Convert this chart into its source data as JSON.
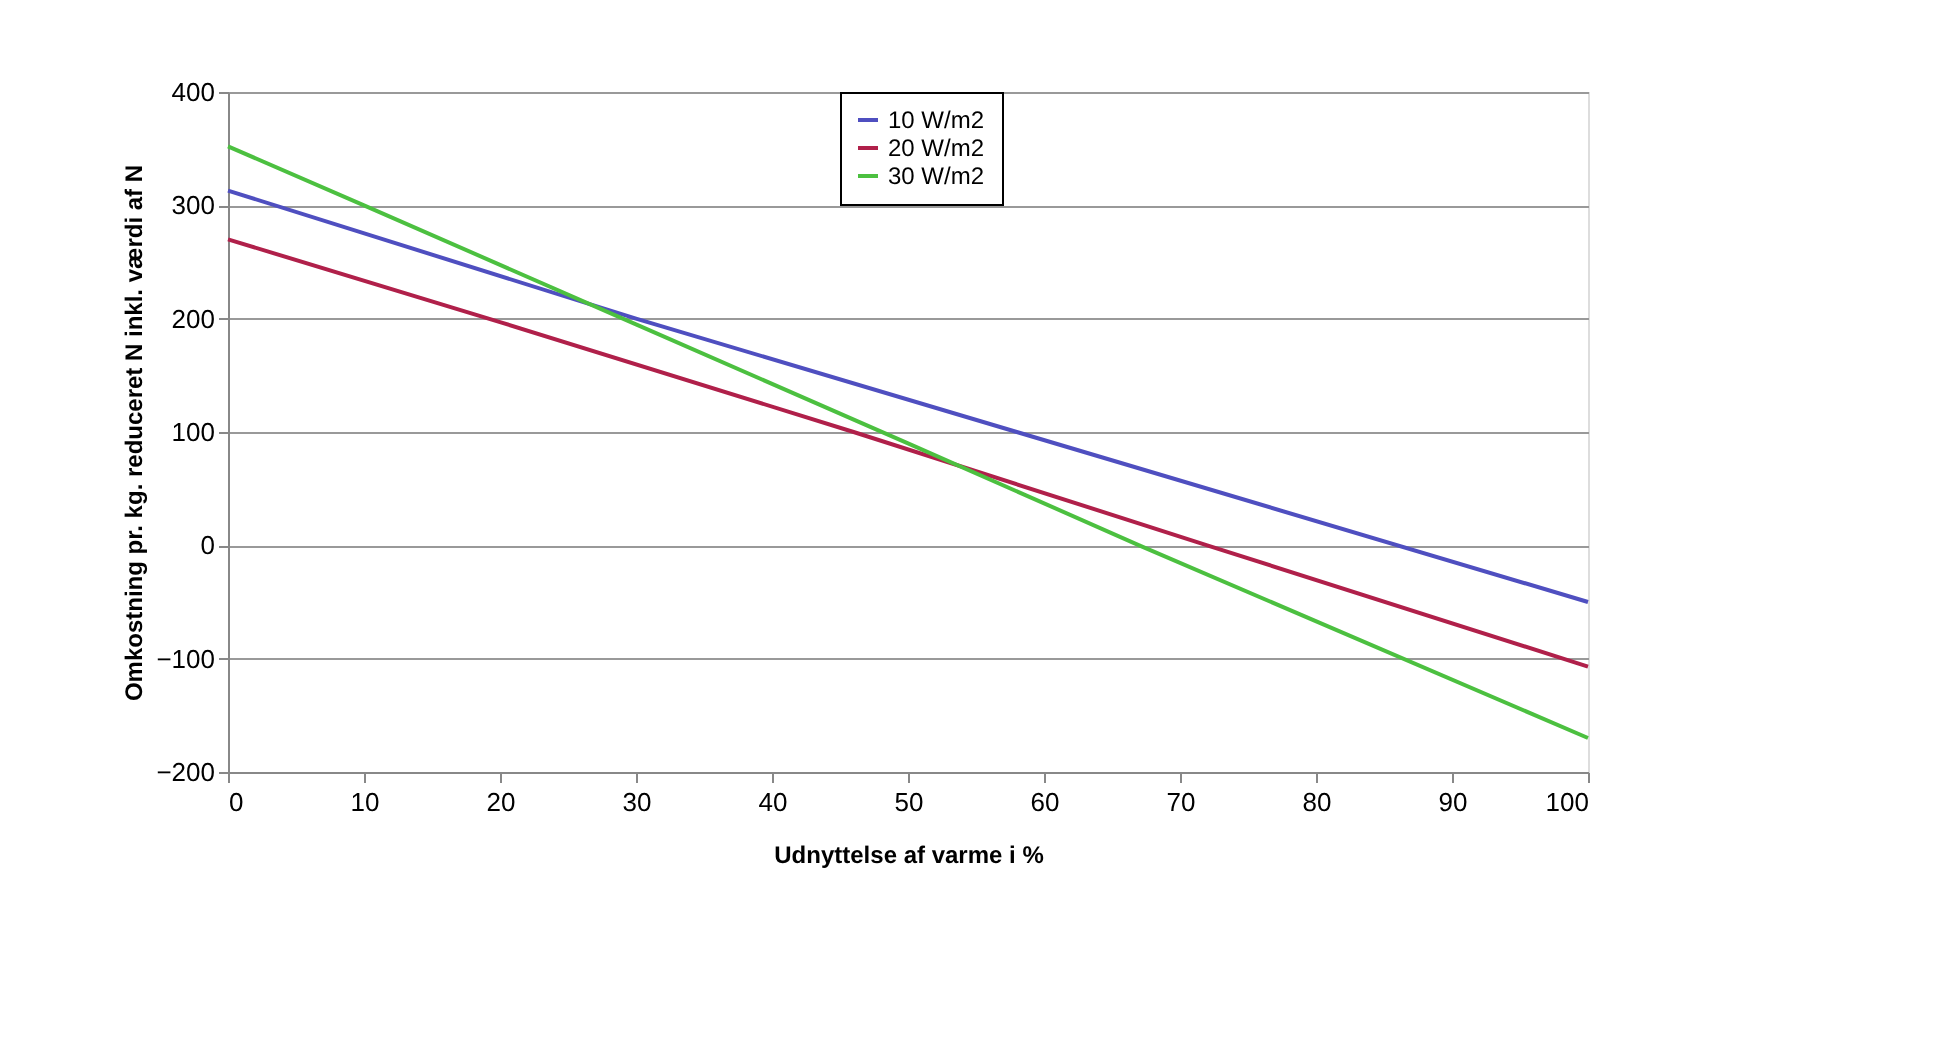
{
  "chart_data": {
    "type": "line",
    "xlabel": "Udnyttelse af varme i %",
    "ylabel": "Omkostning pr. kg. reduceret N inkl. værdi af N",
    "xlim": [
      0,
      100
    ],
    "xticks": [
      0,
      10,
      20,
      30,
      40,
      50,
      60,
      70,
      80,
      90,
      100
    ],
    "ylim": [
      -200,
      400
    ],
    "yticks": [
      -200,
      -100,
      0,
      100,
      200,
      300,
      400
    ],
    "grid": "y",
    "legend": "top right",
    "line_style": "solid",
    "marker": "none",
    "series": [
      {
        "name": "10 W/m2",
        "color": "#4f4fc0",
        "x": [
          0,
          30,
          58,
          100
        ],
        "values": [
          313,
          200,
          100,
          -50
        ]
      },
      {
        "name": "20 W/m2",
        "color": "#b0204a",
        "x": [
          0,
          20,
          46,
          72,
          100
        ],
        "values": [
          270,
          197,
          100,
          0,
          -107
        ]
      },
      {
        "name": "30 W/m2",
        "color": "#4cc040",
        "x": [
          0,
          10,
          30,
          50,
          67,
          100
        ],
        "values": [
          352,
          300,
          195,
          90,
          0,
          -170
        ]
      }
    ]
  }
}
